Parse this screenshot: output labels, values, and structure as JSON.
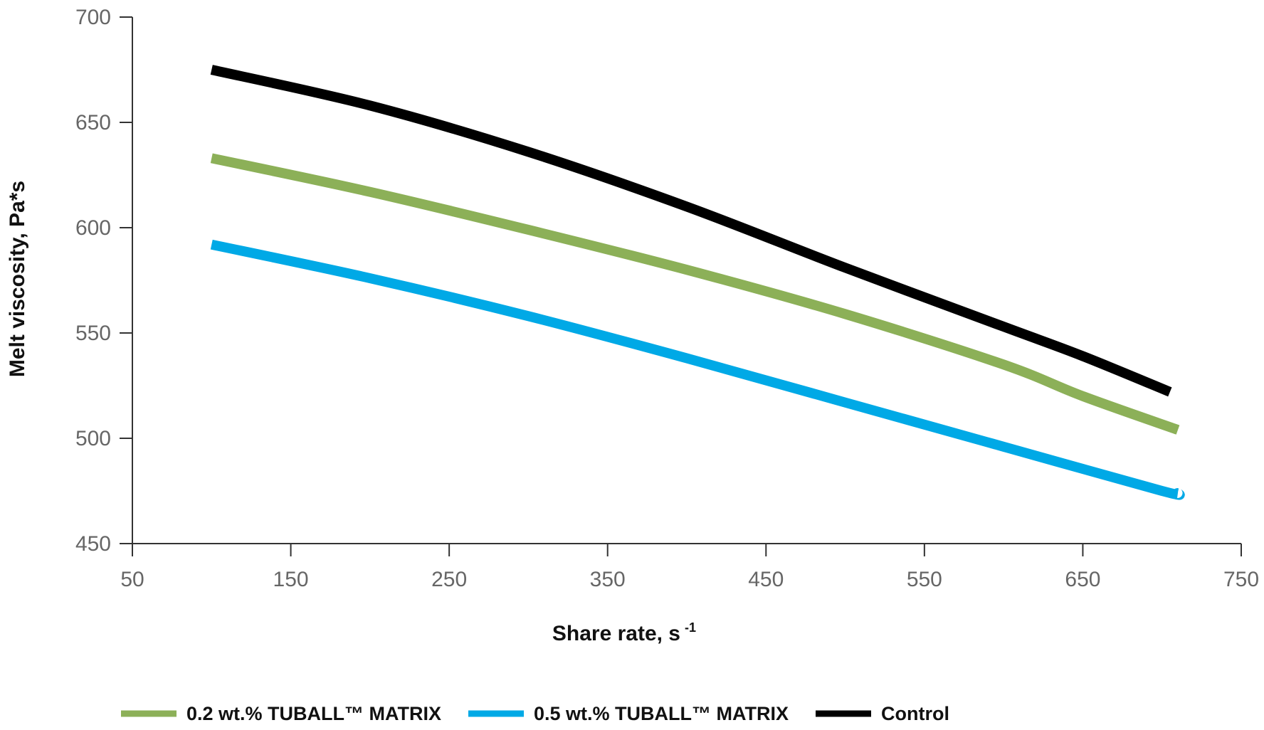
{
  "chart_data": {
    "type": "line",
    "title": "",
    "xlabel": "Share rate, s",
    "xlabel_superscript": "-1",
    "ylabel": "Melt viscosity, Pa*s",
    "xlim": [
      50,
      750
    ],
    "ylim": [
      450,
      700
    ],
    "xticks": [
      50,
      150,
      250,
      350,
      450,
      550,
      650,
      750
    ],
    "yticks": [
      450,
      500,
      550,
      600,
      650,
      700
    ],
    "grid": false,
    "legend_position": "bottom",
    "series": [
      {
        "name": "0.2 wt.% TUBALL™  MATRIX",
        "color": "#8cb058",
        "x": [
          100,
          200,
          300,
          400,
          500,
          600,
          650,
          710
        ],
        "y": [
          633,
          617,
          599,
          580,
          559,
          535,
          520,
          504
        ]
      },
      {
        "name": "0.5 wt.% TUBALL™  MATRIX",
        "color": "#00a9e6",
        "x": [
          100,
          200,
          300,
          400,
          500,
          600,
          700,
          710
        ],
        "y": [
          592,
          576,
          558,
          538,
          517,
          496,
          475,
          474
        ]
      },
      {
        "name": "Control",
        "color": "#000000",
        "x": [
          100,
          200,
          300,
          400,
          500,
          600,
          650,
          705
        ],
        "y": [
          675,
          658,
          636,
          610,
          581,
          553,
          539,
          522
        ]
      }
    ]
  }
}
